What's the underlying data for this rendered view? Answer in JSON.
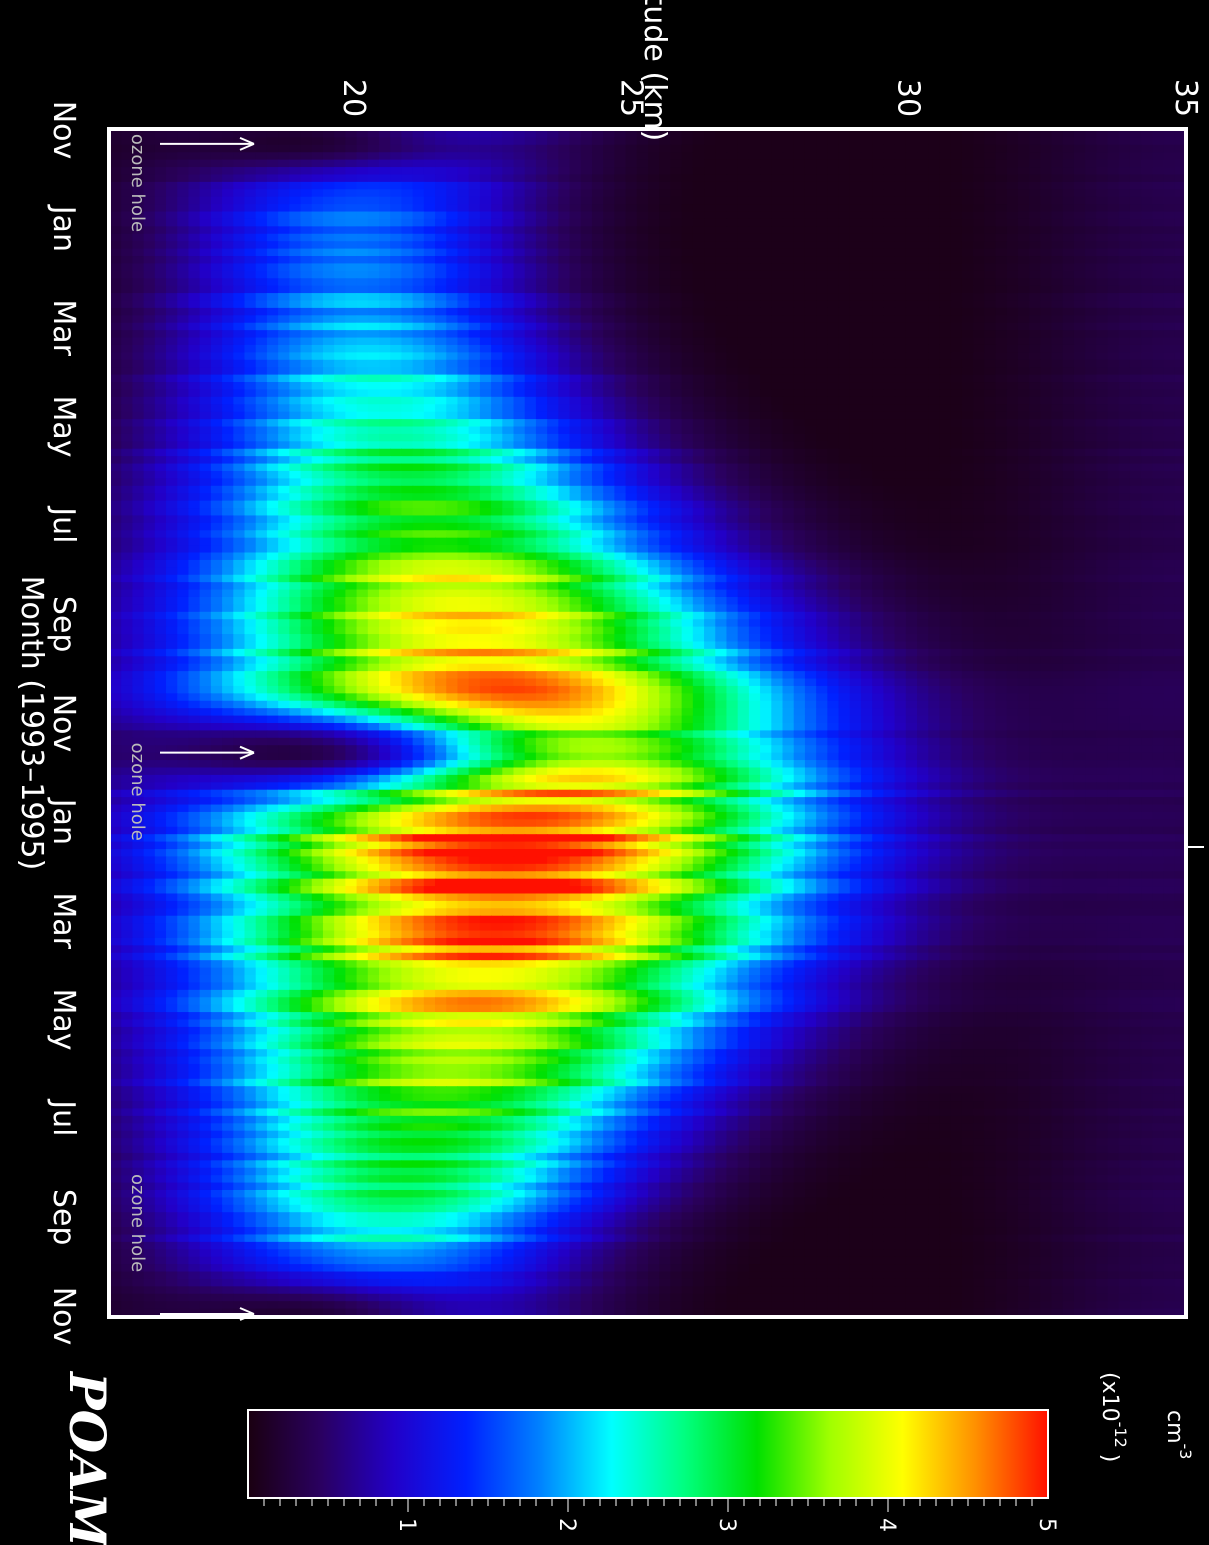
{
  "chart_data": {
    "type": "heatmap",
    "xlabel": "Altitude (km)",
    "ylabel": "Month (1993–1995)",
    "x_ticks": [
      "20",
      "25",
      "30",
      "35"
    ],
    "x_tick_values": [
      20,
      25,
      30,
      35
    ],
    "xlim": [
      15.6,
      35
    ],
    "month_labels": [
      "Nov",
      "Jan",
      "Mar",
      "May",
      "Jul",
      "Sep",
      "Nov",
      "Jan",
      "Mar",
      "May",
      "Jul",
      "Sep",
      "Nov"
    ],
    "annotations": [
      "ozone hole",
      "ozone hole",
      "ozone hole"
    ],
    "annotation_months": [
      0.1,
      6.3,
      12.0
    ],
    "colorbar": {
      "unit": "cm",
      "unit_exponent": "-3",
      "scale_label": "(x10",
      "scale_exponent": "-12",
      "scale_close": ")",
      "ticks": [
        "1",
        "2",
        "3",
        "4",
        "5"
      ],
      "range": [
        0,
        5
      ],
      "colormap": [
        "#1a0010",
        "#2a0060",
        "#2200c8",
        "#0020ff",
        "#0080ff",
        "#00ffff",
        "#00ff80",
        "#00e000",
        "#a0ff00",
        "#ffff00",
        "#ff9000",
        "#ff1000"
      ]
    },
    "profile_model": {
      "peak_altitude_km": [
        20.0,
        22.8
      ],
      "peak_value": [
        1.8,
        5.0
      ],
      "peak_width_km": [
        3.2,
        5.6
      ]
    }
  },
  "branding": {
    "label": "POAM"
  }
}
